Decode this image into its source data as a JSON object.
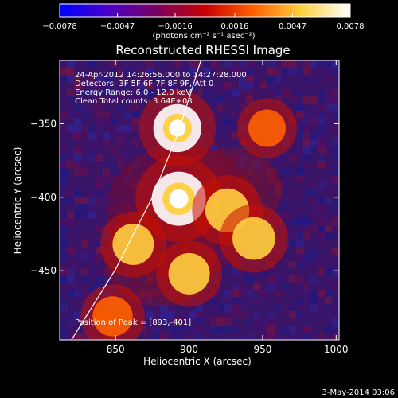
{
  "chart_data": {
    "type": "heatmap",
    "title": "Reconstructed RHESSI Image",
    "xlabel": "Heliocentric X (arcsec)",
    "ylabel": "Heliocentric Y (arcsec)",
    "xlim": [
      812,
      1002
    ],
    "ylim": [
      -497,
      -307
    ],
    "x_ticks": [
      850,
      900,
      950,
      1000
    ],
    "x_tick_labels": [
      "850",
      "900",
      "950",
      "1000"
    ],
    "y_ticks": [
      -350,
      -400,
      -450
    ],
    "y_tick_labels": [
      "−350",
      "−400",
      "−450"
    ],
    "colorbar": {
      "range": [
        -0.0078,
        0.0078
      ],
      "ticks": [
        -0.0078,
        -0.0047,
        -0.0016,
        0.0016,
        0.0047,
        0.0078
      ],
      "tick_labels": [
        "−0.0078",
        "−0.0047",
        "−0.0016",
        "0.0016",
        "0.0047",
        "0.0078"
      ],
      "unit_text": "(photons cm⁻² s⁻¹ asec⁻²)",
      "colors": [
        "#0000ff",
        "#4a00c8",
        "#7a0060",
        "#c80000",
        "#ff6000",
        "#ffd040",
        "#ffffff"
      ]
    },
    "annotations": [
      "24-Apr-2012 14:26:56.000 to 14:27:28.000",
      "Detectors: 3F 5F 6F 7F 8F 9F, Att 0",
      "Energy Range: 6.0 - 12.0 keV",
      "Clean    Total counts: 3.64E+03"
    ],
    "peak_label": "Position of Peak = [893,-401]",
    "peak": [
      893,
      -401
    ],
    "sources": [
      {
        "x": 893,
        "y": -401,
        "value": 0.0078
      },
      {
        "x": 892,
        "y": -353,
        "value": 0.0055
      },
      {
        "x": 926,
        "y": -409,
        "value": 0.004
      },
      {
        "x": 944,
        "y": -428,
        "value": 0.0035
      },
      {
        "x": 862,
        "y": -432,
        "value": 0.003
      },
      {
        "x": 900,
        "y": -452,
        "value": 0.003
      },
      {
        "x": 848,
        "y": -481,
        "value": 0.0025
      },
      {
        "x": 953,
        "y": -353,
        "value": 0.0015
      }
    ],
    "limb_points": [
      [
        820,
        -497
      ],
      [
        850,
        -449
      ],
      [
        875,
        -400
      ],
      [
        893,
        -355
      ],
      [
        908,
        -307
      ]
    ],
    "timestamp": "3-May-2014 03:06"
  }
}
